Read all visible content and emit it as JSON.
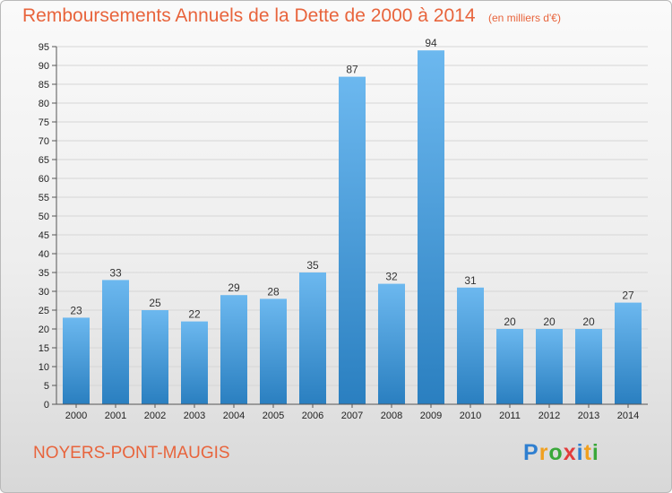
{
  "title": "Remboursements Annuels de la Dette de 2000 à 2014",
  "unit_note": "(en milliers d'€)",
  "commune": "NOYERS-PONT-MAUGIS",
  "brand": {
    "letters": [
      {
        "char": "P",
        "color": "#2f7fd0"
      },
      {
        "char": "r",
        "color": "#f0a020"
      },
      {
        "char": "o",
        "color": "#3aa83a"
      },
      {
        "char": "x",
        "color": "#e23c3c"
      },
      {
        "char": "i",
        "color": "#2f7fd0"
      },
      {
        "char": "t",
        "color": "#f0a020"
      },
      {
        "char": "i",
        "color": "#3aa83a"
      }
    ]
  },
  "colors": {
    "title": "#e8643c",
    "bar_light": "#6cb8ef",
    "bar_dark": "#2a7fc0",
    "grid": "#d6d6d6"
  },
  "chart_data": {
    "type": "bar",
    "title": "Remboursements Annuels de la Dette de 2000 à 2014",
    "subtitle": "(en milliers d'€)",
    "xlabel": "",
    "ylabel": "",
    "categories": [
      "2000",
      "2001",
      "2002",
      "2003",
      "2004",
      "2005",
      "2006",
      "2007",
      "2008",
      "2009",
      "2010",
      "2011",
      "2012",
      "2013",
      "2014"
    ],
    "values": [
      23,
      33,
      25,
      22,
      29,
      28,
      35,
      87,
      32,
      94,
      31,
      20,
      20,
      20,
      27
    ],
    "ylim": [
      0,
      95
    ],
    "y_ticks": [
      0,
      5,
      10,
      15,
      20,
      25,
      30,
      35,
      40,
      45,
      50,
      55,
      60,
      65,
      70,
      75,
      80,
      85,
      90,
      95
    ],
    "grid": true,
    "data_labels": true
  }
}
